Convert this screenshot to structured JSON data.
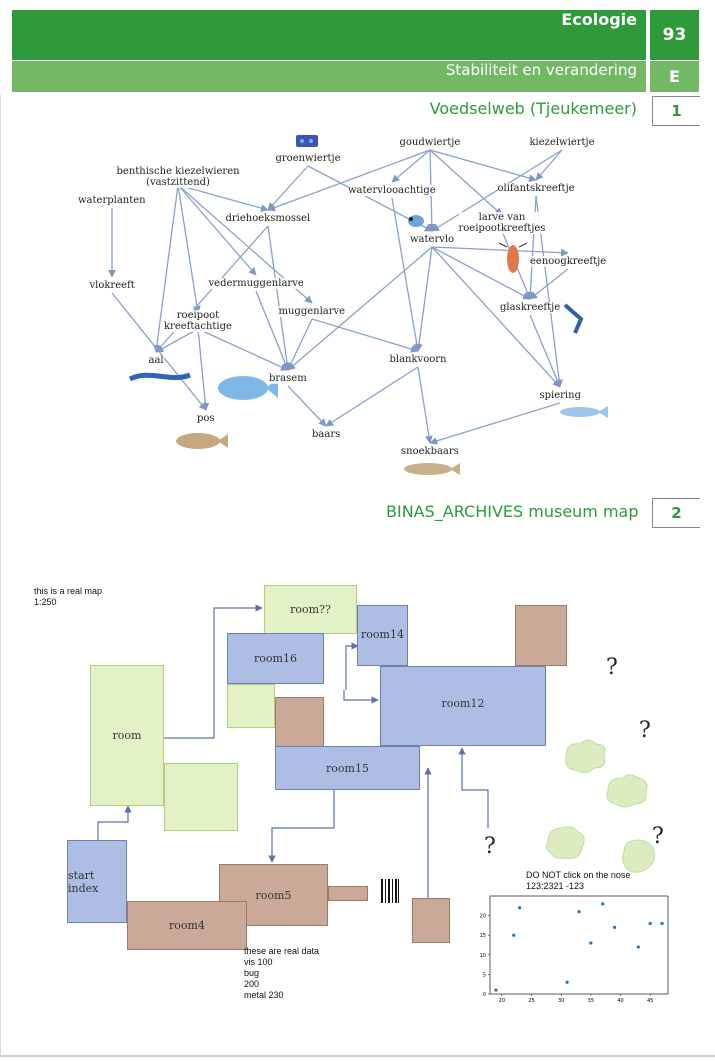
{
  "header": {
    "chapter": "Ecologie",
    "page_number": "93",
    "subtitle": "Stabiliteit en verandering",
    "section_letter": "E",
    "colors": {
      "dark_green": "#2e9a3a",
      "light_green": "#72b865"
    }
  },
  "section1": {
    "title": "Voedselweb (Tjeukemeer)",
    "number": "1"
  },
  "section2": {
    "title": "BINAS_ARCHIVES museum map",
    "number": "2"
  },
  "foodweb": {
    "nodes": [
      {
        "id": "groenwiertje",
        "label": "groenwiertje"
      },
      {
        "id": "goudwiertje",
        "label": "goudwiertje"
      },
      {
        "id": "kiezelwiertje",
        "label": "kiezelwiertje"
      },
      {
        "id": "benthisch",
        "label": "benthische kiezelwieren\n(vastzittend)"
      },
      {
        "id": "watervlooachtige",
        "label": "watervlooachtige"
      },
      {
        "id": "olifantskreeftje",
        "label": "olifantskreeftje"
      },
      {
        "id": "waterplanten",
        "label": "waterplanten"
      },
      {
        "id": "driehoeksmossel",
        "label": "driehoeksmossel"
      },
      {
        "id": "larve",
        "label": "larve van\nroeipootkreeftjes"
      },
      {
        "id": "watervlo",
        "label": "watervlo"
      },
      {
        "id": "eenoogkreeftje",
        "label": "eenoogkreeftje"
      },
      {
        "id": "vedermuggenlarve",
        "label": "vedermuggenlarve"
      },
      {
        "id": "vlokreeft",
        "label": "vlokreeft"
      },
      {
        "id": "roeipoot",
        "label": "roeipoot\nkreeftachtige"
      },
      {
        "id": "muggenlarve",
        "label": "muggenlarve"
      },
      {
        "id": "glaskreeftje",
        "label": "glaskreeftje"
      },
      {
        "id": "aal",
        "label": "aal"
      },
      {
        "id": "blankvoorn",
        "label": "blankvoorn"
      },
      {
        "id": "brasem",
        "label": "brasem"
      },
      {
        "id": "spiering",
        "label": "spiering"
      },
      {
        "id": "pos",
        "label": "pos"
      },
      {
        "id": "baars",
        "label": "baars"
      },
      {
        "id": "snoekbaars",
        "label": "snoekbaars"
      }
    ],
    "edges": [
      [
        "groenwiertje",
        "driehoeksmossel"
      ],
      [
        "groenwiertje",
        "watervlo"
      ],
      [
        "goudwiertje",
        "driehoeksmossel"
      ],
      [
        "goudwiertje",
        "watervlooachtige"
      ],
      [
        "goudwiertje",
        "watervlo"
      ],
      [
        "goudwiertje",
        "olifantskreeftje"
      ],
      [
        "goudwiertje",
        "larve"
      ],
      [
        "kiezelwiertje",
        "olifantskreeftje"
      ],
      [
        "kiezelwiertje",
        "watervlo"
      ],
      [
        "benthisch",
        "driehoeksmossel"
      ],
      [
        "benthisch",
        "vedermuggenlarve"
      ],
      [
        "benthisch",
        "muggenlarve"
      ],
      [
        "benthisch",
        "roeipoot"
      ],
      [
        "benthisch",
        "aal"
      ],
      [
        "waterplanten",
        "vlokreeft"
      ],
      [
        "driehoeksmossel",
        "aal"
      ],
      [
        "driehoeksmossel",
        "brasem"
      ],
      [
        "watervlooachtige",
        "blankvoorn"
      ],
      [
        "olifantskreeftje",
        "spiering"
      ],
      [
        "olifantskreeftje",
        "glaskreeftje"
      ],
      [
        "watervlo",
        "blankvoorn"
      ],
      [
        "watervlo",
        "brasem"
      ],
      [
        "watervlo",
        "glaskreeftje"
      ],
      [
        "watervlo",
        "spiering"
      ],
      [
        "watervlo",
        "eenoogkreeftje"
      ],
      [
        "eenoogkreeftje",
        "glaskreeftje"
      ],
      [
        "larve",
        "glaskreeftje"
      ],
      [
        "vlokreeft",
        "pos"
      ],
      [
        "roeipoot",
        "pos"
      ],
      [
        "roeipoot",
        "brasem"
      ],
      [
        "roeipoot",
        "aal"
      ],
      [
        "vedermuggenlarve",
        "brasem"
      ],
      [
        "muggenlarve",
        "brasem"
      ],
      [
        "muggenlarve",
        "blankvoorn"
      ],
      [
        "glaskreeftje",
        "spiering"
      ],
      [
        "blankvoorn",
        "snoekbaars"
      ],
      [
        "blankvoorn",
        "baars"
      ],
      [
        "brasem",
        "baars"
      ],
      [
        "spiering",
        "snoekbaars"
      ]
    ]
  },
  "museum": {
    "note_scale": "this is a real map\n1:250",
    "note_data": "these are real data\nvis 100\nbug\n200\nmetal 230",
    "note_nose": "DO NOT click on the nose\n123:2321 -123",
    "rooms": {
      "room_q": "room??",
      "room14": "room14",
      "room16": "room16",
      "room12": "room12",
      "room": "room",
      "room15": "room15",
      "start": "start index",
      "room5": "room5",
      "room4": "room4"
    },
    "question_mark": "?",
    "colors": {
      "blue": "#adbde4",
      "green": "#e3f1c6",
      "brown": "#cba998",
      "cloud": "#dcecc0"
    }
  },
  "chart_data": {
    "type": "scatter",
    "x": [
      19,
      22,
      23,
      31,
      33,
      35,
      37,
      39,
      43,
      45,
      47
    ],
    "y": [
      1,
      15,
      22,
      3,
      21,
      13,
      23,
      17,
      12,
      18,
      18
    ],
    "xticks": [
      "20",
      "25",
      "30",
      "35",
      "40",
      "45"
    ],
    "yticks": [
      "0",
      "5",
      "10",
      "15",
      "20"
    ],
    "xlim": [
      18,
      48
    ],
    "ylim": [
      0,
      25
    ],
    "point_color": "#1f77b4"
  }
}
